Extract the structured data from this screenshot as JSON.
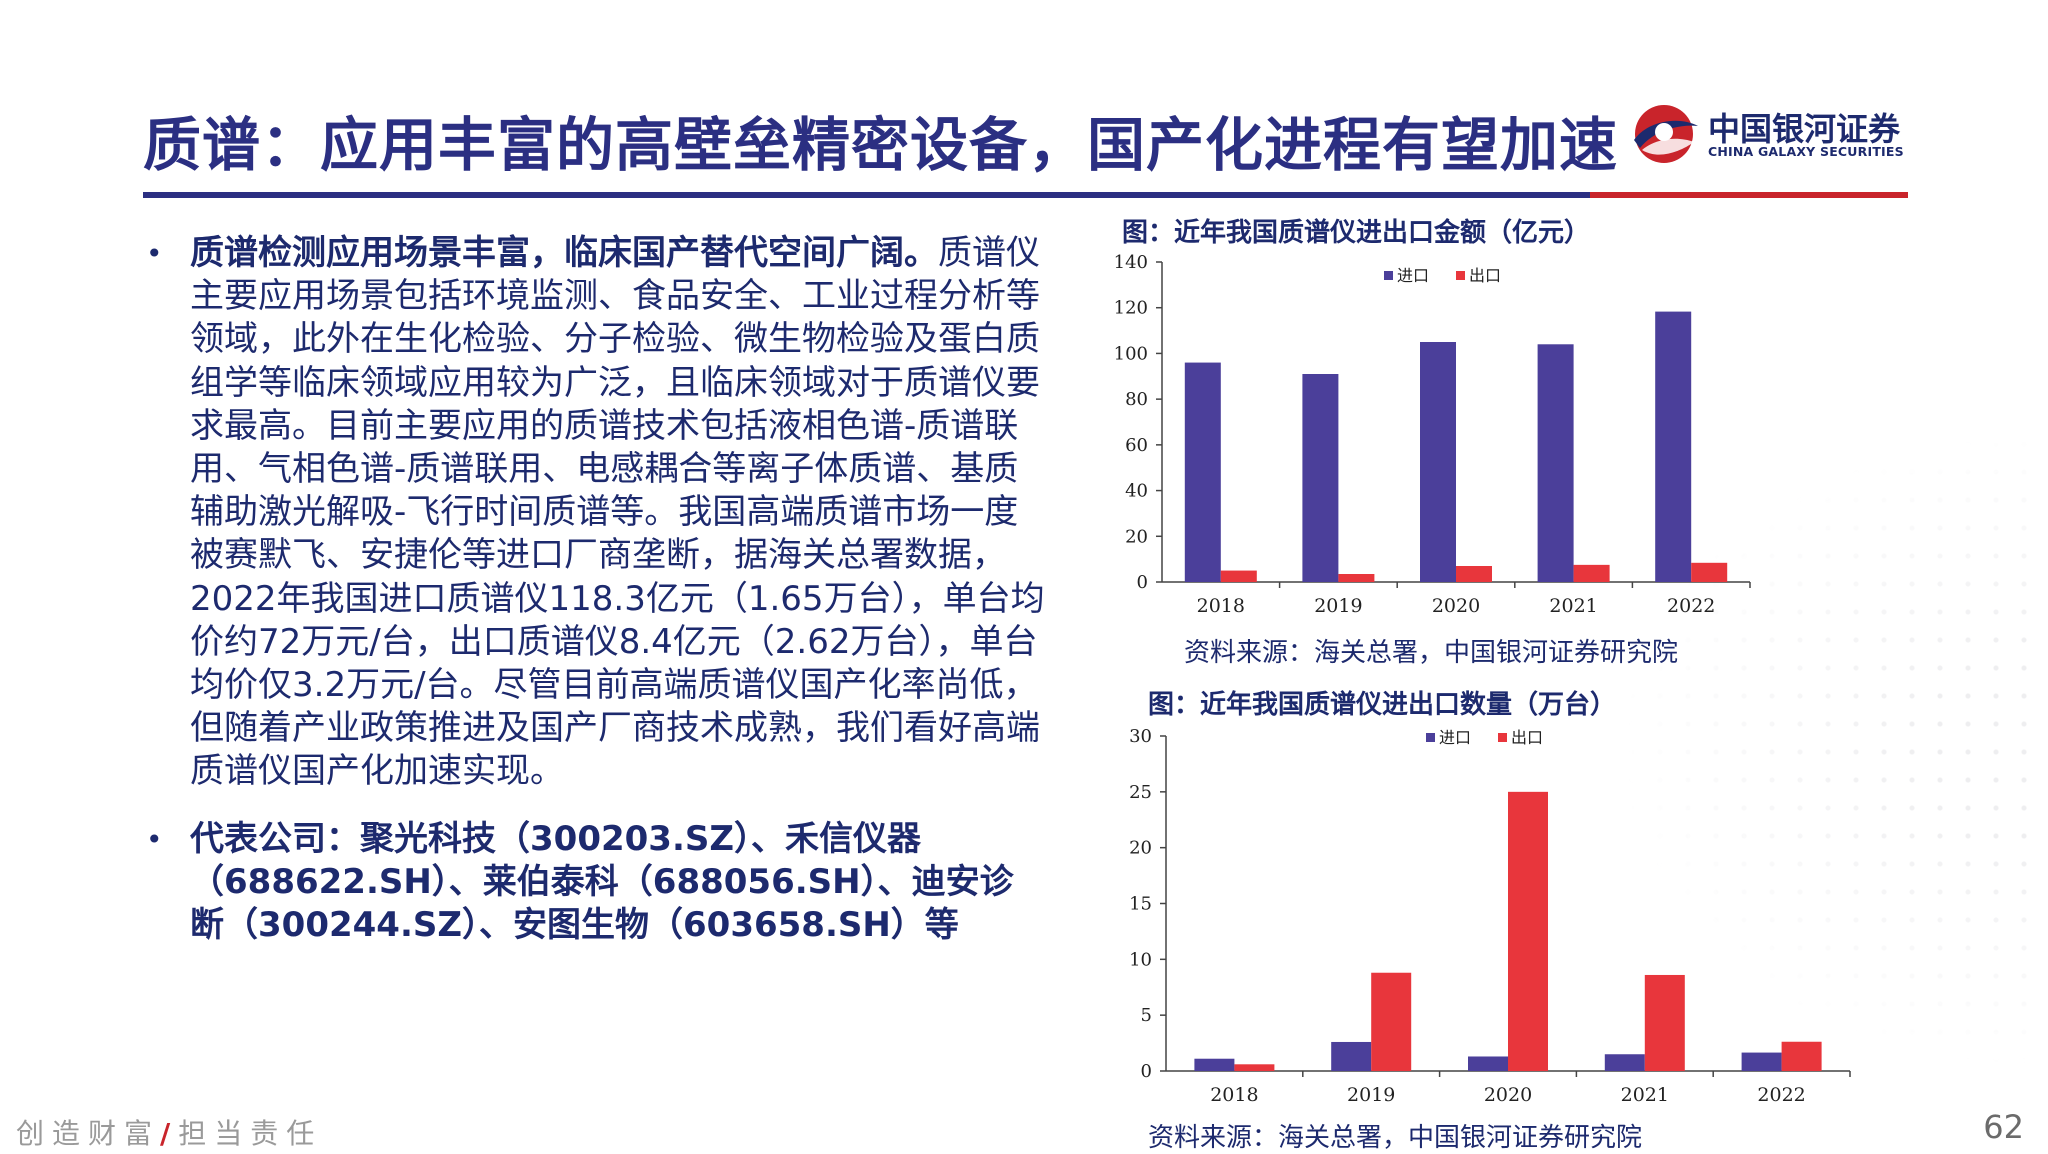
{
  "header": {
    "title": "质谱：应用丰富的高壁垒精密设备，国产化进程有望加速",
    "logo_cn": "中国银河证券",
    "logo_en": "CHINA GALAXY SECURITIES"
  },
  "colors": {
    "primary": "#2b2f82",
    "accent": "#c9242b",
    "import": "#4b3f9a",
    "export": "#e8363c"
  },
  "bullets": [
    {
      "lead": "质谱检测应用场景丰富，临床国产替代空间广阔。",
      "text": "质谱仪主要应用场景包括环境监测、食品安全、工业过程分析等领域，此外在生化检验、分子检验、微生物检验及蛋白质组学等临床领域应用较为广泛，且临床领域对于质谱仪要求最高。目前主要应用的质谱技术包括液相色谱-质谱联用、气相色谱-质谱联用、电感耦合等离子体质谱、基质辅助激光解吸-飞行时间质谱等。我国高端质谱市场一度被赛默飞、安捷伦等进口厂商垄断，据海关总署数据，2022年我国进口质谱仪118.3亿元（1.65万台），单台均价约72万元/台，出口质谱仪8.4亿元（2.62万台），单台均价仅3.2万元/台。尽管目前高端质谱仪国产化率尚低，但随着产业政策推进及国产厂商技术成熟，我们看好高端质谱仪国产化加速实现。"
    },
    {
      "lead": "代表公司：聚光科技（300203.SZ）、禾信仪器（688622.SH）、莱伯泰科（688056.SH）、迪安诊断（300244.SZ）、安图生物（603658.SH）等",
      "text": ""
    }
  ],
  "chart_data": [
    {
      "type": "bar",
      "title": "图：近年我国质谱仪进出口金额（亿元）",
      "categories": [
        "2018",
        "2019",
        "2020",
        "2021",
        "2022"
      ],
      "series": [
        {
          "name": "进口",
          "values": [
            96,
            91,
            105,
            104,
            118.3
          ]
        },
        {
          "name": "出口",
          "values": [
            5,
            3.5,
            7,
            7.5,
            8.4
          ]
        }
      ],
      "ylim": [
        0,
        140
      ],
      "yticks": [
        0,
        20,
        40,
        60,
        80,
        100,
        120,
        140
      ],
      "legend": "top",
      "source": "资料来源：海关总署，中国银河证券研究院"
    },
    {
      "type": "bar",
      "title": "图：近年我国质谱仪进出口数量（万台）",
      "categories": [
        "2018",
        "2019",
        "2020",
        "2021",
        "2022"
      ],
      "series": [
        {
          "name": "进口",
          "values": [
            1.1,
            2.6,
            1.3,
            1.5,
            1.65
          ]
        },
        {
          "name": "出口",
          "values": [
            0.6,
            8.8,
            25,
            8.6,
            2.62
          ]
        }
      ],
      "ylim": [
        0,
        30
      ],
      "yticks": [
        0,
        5,
        10,
        15,
        20,
        25,
        30
      ],
      "legend": "top",
      "source": "资料来源：海关总署，中国银河证券研究院"
    }
  ],
  "footer": {
    "slogan_left": "创造财富",
    "slash": "/",
    "slogan_right": "担当责任",
    "page_number": "62"
  }
}
